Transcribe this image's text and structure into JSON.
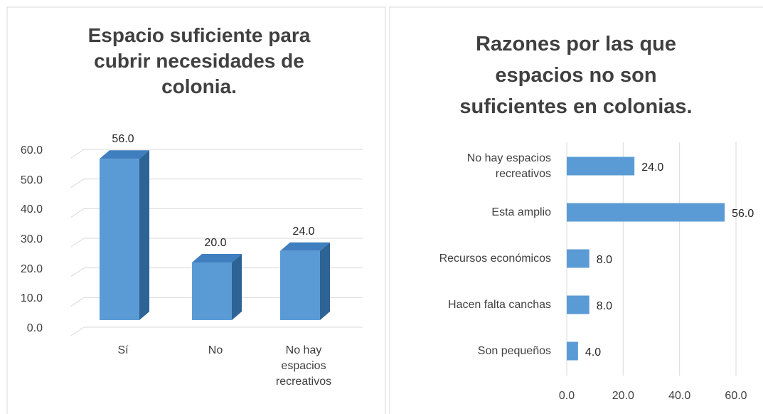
{
  "chart_data": [
    {
      "type": "bar3d",
      "title": "Espacio suficiente para cubrir necesidades de colonia.",
      "categories": [
        "Sí",
        "No",
        "No hay espacios recreativos"
      ],
      "values": [
        56,
        20,
        24
      ],
      "value_labels": [
        "56.0",
        "20.0",
        "24.0"
      ],
      "color": "#5b9bd5",
      "ylim": [
        0,
        60
      ],
      "yticks": [
        {
          "value": 0,
          "label": "0.0"
        },
        {
          "value": 10,
          "label": "10.0"
        },
        {
          "value": 20,
          "label": "20.0"
        },
        {
          "value": 30,
          "label": "30.0"
        },
        {
          "value": 40,
          "label": "40.0"
        },
        {
          "value": 50,
          "label": "50.0"
        },
        {
          "value": 60,
          "label": "60.0"
        }
      ],
      "grid": true
    },
    {
      "type": "hbar",
      "title": "Razones por las que espacios no son suficientes en colonias.",
      "categories": [
        "No hay espacios recreativos",
        "Esta amplio",
        "Recursos económicos",
        "Hacen falta canchas",
        "Son pequeños"
      ],
      "values": [
        24,
        56,
        8,
        8,
        4
      ],
      "value_labels": [
        "24.0",
        "56.0",
        "8.0",
        "8.0",
        "4.0"
      ],
      "color": "#5b9bd5",
      "xlim": [
        0,
        60
      ],
      "xticks": [
        {
          "value": 0,
          "label": "0.0"
        },
        {
          "value": 20,
          "label": "20.0"
        },
        {
          "value": 40,
          "label": "40.0"
        },
        {
          "value": 60,
          "label": "60.0"
        }
      ],
      "grid": true
    }
  ]
}
